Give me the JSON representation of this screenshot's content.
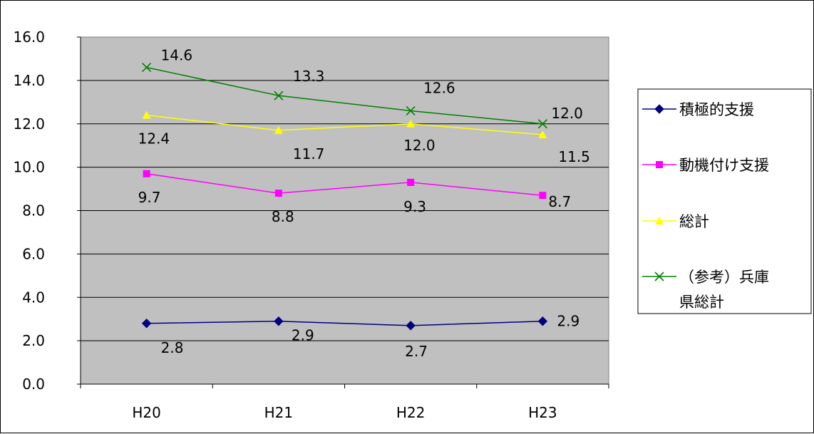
{
  "chart_data": {
    "type": "line",
    "title": "",
    "xlabel": "",
    "ylabel": "",
    "categories": [
      "H20",
      "H21",
      "H22",
      "H23"
    ],
    "ylim": [
      0,
      16
    ],
    "yticks": [
      "0.0",
      "2.0",
      "4.0",
      "6.0",
      "8.0",
      "10.0",
      "12.0",
      "14.0",
      "16.0"
    ],
    "grid": true,
    "legend_position": "right",
    "plot_background": "#c0c0c0",
    "series": [
      {
        "name": "積極的支援",
        "values": [
          2.8,
          2.9,
          2.7,
          2.9
        ],
        "labels": [
          "2.8",
          "2.9",
          "2.7",
          "2.9"
        ],
        "color": "#000080",
        "marker": "diamond"
      },
      {
        "name": "動機付け支援",
        "values": [
          9.7,
          8.8,
          9.3,
          8.7
        ],
        "labels": [
          "9.7",
          "8.8",
          "9.3",
          "8.7"
        ],
        "color": "#ff00ff",
        "marker": "square"
      },
      {
        "name": "総計",
        "values": [
          12.4,
          11.7,
          12.0,
          11.5
        ],
        "labels": [
          "12.4",
          "11.7",
          "12.0",
          "11.5"
        ],
        "color": "#ffff00",
        "marker": "triangle"
      },
      {
        "name": "（参考）兵庫県総計",
        "legend_lines": [
          "（参考）兵庫",
          "県総計"
        ],
        "values": [
          14.6,
          13.3,
          12.6,
          12.0
        ],
        "labels": [
          "14.6",
          "13.3",
          "12.6",
          "12.0"
        ],
        "color": "#008000",
        "marker": "x"
      }
    ]
  }
}
